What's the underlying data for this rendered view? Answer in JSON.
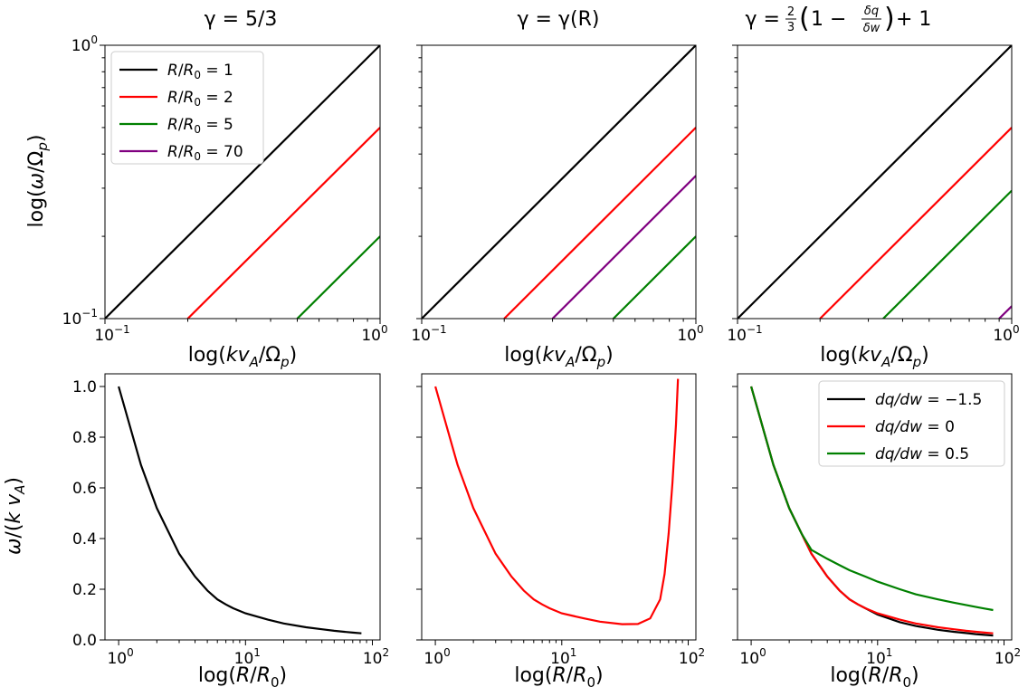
{
  "chart_data": [
    {
      "type": "line",
      "title": "γ = 5/3",
      "xlabel": "log(kv_A/Ω_p)",
      "ylabel": "log(ω/Ω_p)",
      "xscale": "log",
      "yscale": "log",
      "xlim": [
        0.1,
        1
      ],
      "ylim": [
        0.1,
        1
      ],
      "xticklabels": [
        "10⁻¹",
        "10⁰"
      ],
      "yticklabels": [
        "10⁻¹",
        "10⁰"
      ],
      "legend": {
        "location": "upper-left",
        "entries": [
          "R/R₀ = 1",
          "R/R₀ = 2",
          "R/R₀ = 5",
          "R/R₀ = 70"
        ]
      },
      "series": [
        {
          "name": "R/R₀ = 1",
          "color": "#000000",
          "x": [
            0.1,
            1
          ],
          "y": [
            0.1,
            1
          ]
        },
        {
          "name": "R/R₀ = 2",
          "color": "#ff0000",
          "x": [
            0.2,
            1
          ],
          "y": [
            0.1,
            0.5
          ]
        },
        {
          "name": "R/R₀ = 5",
          "color": "#008000",
          "x": [
            0.5,
            1
          ],
          "y": [
            0.1,
            0.2
          ]
        }
      ]
    },
    {
      "type": "line",
      "title": "γ = γ(R)",
      "xlabel": "log(kv_A/Ω_p)",
      "xscale": "log",
      "yscale": "log",
      "xlim": [
        0.1,
        1
      ],
      "ylim": [
        0.1,
        1
      ],
      "xticklabels": [
        "10⁻¹",
        "10⁰"
      ],
      "series": [
        {
          "name": "R/R₀ = 1",
          "color": "#000000",
          "x": [
            0.1,
            1
          ],
          "y": [
            0.1,
            1
          ]
        },
        {
          "name": "R/R₀ = 2",
          "color": "#ff0000",
          "x": [
            0.2,
            1
          ],
          "y": [
            0.1,
            0.5
          ]
        },
        {
          "name": "R/R₀ = 5",
          "color": "#008000",
          "x": [
            0.5,
            1
          ],
          "y": [
            0.1,
            0.2
          ]
        },
        {
          "name": "R/R₀ = 70",
          "color": "#800080",
          "x": [
            0.3,
            1
          ],
          "y": [
            0.1,
            0.333
          ]
        }
      ]
    },
    {
      "type": "line",
      "title_prefix": "γ = ",
      "title_frac_num": "2",
      "title_frac_den": "3",
      "title_open": "(",
      "title_one_minus": "1 − ",
      "title_inner_num": "δq",
      "title_inner_den": "δw",
      "title_close": ")",
      "title_suffix": " + 1",
      "xlabel": "log(kv_A/Ω_p)",
      "xscale": "log",
      "yscale": "log",
      "xlim": [
        0.1,
        1
      ],
      "ylim": [
        0.1,
        1
      ],
      "xticklabels": [
        "10⁻¹",
        "10⁰"
      ],
      "series": [
        {
          "name": "R/R₀ = 1",
          "color": "#000000",
          "x": [
            0.1,
            1
          ],
          "y": [
            0.1,
            1
          ]
        },
        {
          "name": "R/R₀ = 2",
          "color": "#ff0000",
          "x": [
            0.2,
            1
          ],
          "y": [
            0.1,
            0.5
          ]
        },
        {
          "name": "R/R₀ = 5",
          "color": "#008000",
          "x": [
            0.34,
            1
          ],
          "y": [
            0.1,
            0.294
          ]
        },
        {
          "name": "R/R₀ = 70",
          "color": "#800080",
          "x": [
            0.9,
            1
          ],
          "y": [
            0.1,
            0.111
          ]
        }
      ]
    },
    {
      "type": "line",
      "xlabel": "log(R/R₀)",
      "ylabel": "ω/(k v_A)",
      "xscale": "log",
      "xlim": [
        0.78,
        115
      ],
      "ylim": [
        0,
        1.05
      ],
      "xticklabels": [
        "10⁰",
        "10¹",
        "10²"
      ],
      "yticks": [
        0.0,
        0.2,
        0.4,
        0.6,
        0.8,
        1.0
      ],
      "yticklabels": [
        "0.0",
        "0.2",
        "0.4",
        "0.6",
        "0.8",
        "1.0"
      ],
      "series": [
        {
          "name": "black",
          "color": "#000000",
          "x": [
            1,
            1.5,
            2,
            3,
            4,
            5,
            6,
            7,
            8,
            10,
            15,
            20,
            30,
            40,
            50,
            60,
            70,
            82
          ],
          "y": [
            1.0,
            0.69,
            0.52,
            0.34,
            0.25,
            0.195,
            0.16,
            0.14,
            0.125,
            0.105,
            0.08,
            0.065,
            0.05,
            0.042,
            0.036,
            0.032,
            0.029,
            0.026
          ]
        }
      ]
    },
    {
      "type": "line",
      "xlabel": "log(R/R₀)",
      "xscale": "log",
      "xlim": [
        0.78,
        115
      ],
      "ylim": [
        0,
        1.05
      ],
      "xticklabels": [
        "10⁰",
        "10¹",
        "10²"
      ],
      "series": [
        {
          "name": "red",
          "color": "#ff0000",
          "x": [
            1,
            1.5,
            2,
            3,
            4,
            5,
            6,
            7,
            8,
            10,
            15,
            20,
            30,
            40,
            50,
            60,
            65,
            70,
            75,
            80,
            83
          ],
          "y": [
            1.0,
            0.69,
            0.52,
            0.34,
            0.25,
            0.195,
            0.16,
            0.14,
            0.125,
            0.105,
            0.085,
            0.072,
            0.062,
            0.063,
            0.085,
            0.16,
            0.26,
            0.42,
            0.62,
            0.85,
            1.03
          ]
        }
      ]
    },
    {
      "type": "line",
      "xlabel": "log(R/R₀)",
      "xscale": "log",
      "xlim": [
        0.78,
        115
      ],
      "ylim": [
        0,
        1.05
      ],
      "xticklabels": [
        "10⁰",
        "10¹",
        "10²"
      ],
      "legend": {
        "location": "upper-right",
        "entries": [
          "dq/dw = −1.5",
          "dq/dw = 0",
          "dq/dw = 0.5"
        ]
      },
      "series": [
        {
          "name": "dq/dw = −1.5",
          "color": "#000000",
          "x": [
            1,
            1.5,
            2,
            3,
            4,
            5,
            6,
            7,
            8,
            10,
            15,
            20,
            30,
            40,
            50,
            60,
            70,
            82
          ],
          "y": [
            1.0,
            0.69,
            0.52,
            0.34,
            0.25,
            0.195,
            0.16,
            0.14,
            0.125,
            0.1,
            0.07,
            0.055,
            0.04,
            0.032,
            0.027,
            0.023,
            0.02,
            0.017
          ]
        },
        {
          "name": "dq/dw = 0",
          "color": "#ff0000",
          "x": [
            1,
            1.5,
            2,
            3,
            4,
            5,
            6,
            7,
            8,
            10,
            15,
            20,
            30,
            40,
            50,
            60,
            70,
            82
          ],
          "y": [
            1.0,
            0.69,
            0.52,
            0.34,
            0.25,
            0.195,
            0.16,
            0.14,
            0.125,
            0.105,
            0.08,
            0.065,
            0.05,
            0.042,
            0.036,
            0.032,
            0.029,
            0.026
          ]
        },
        {
          "name": "dq/dw = 0.5",
          "color": "#008000",
          "x": [
            1,
            1.5,
            2,
            2.5,
            3,
            4,
            5,
            6,
            8,
            10,
            15,
            20,
            30,
            40,
            50,
            60,
            70,
            82
          ],
          "y": [
            1.0,
            0.69,
            0.52,
            0.42,
            0.355,
            0.32,
            0.295,
            0.275,
            0.25,
            0.23,
            0.2,
            0.18,
            0.16,
            0.147,
            0.138,
            0.13,
            0.124,
            0.118
          ]
        }
      ]
    }
  ]
}
